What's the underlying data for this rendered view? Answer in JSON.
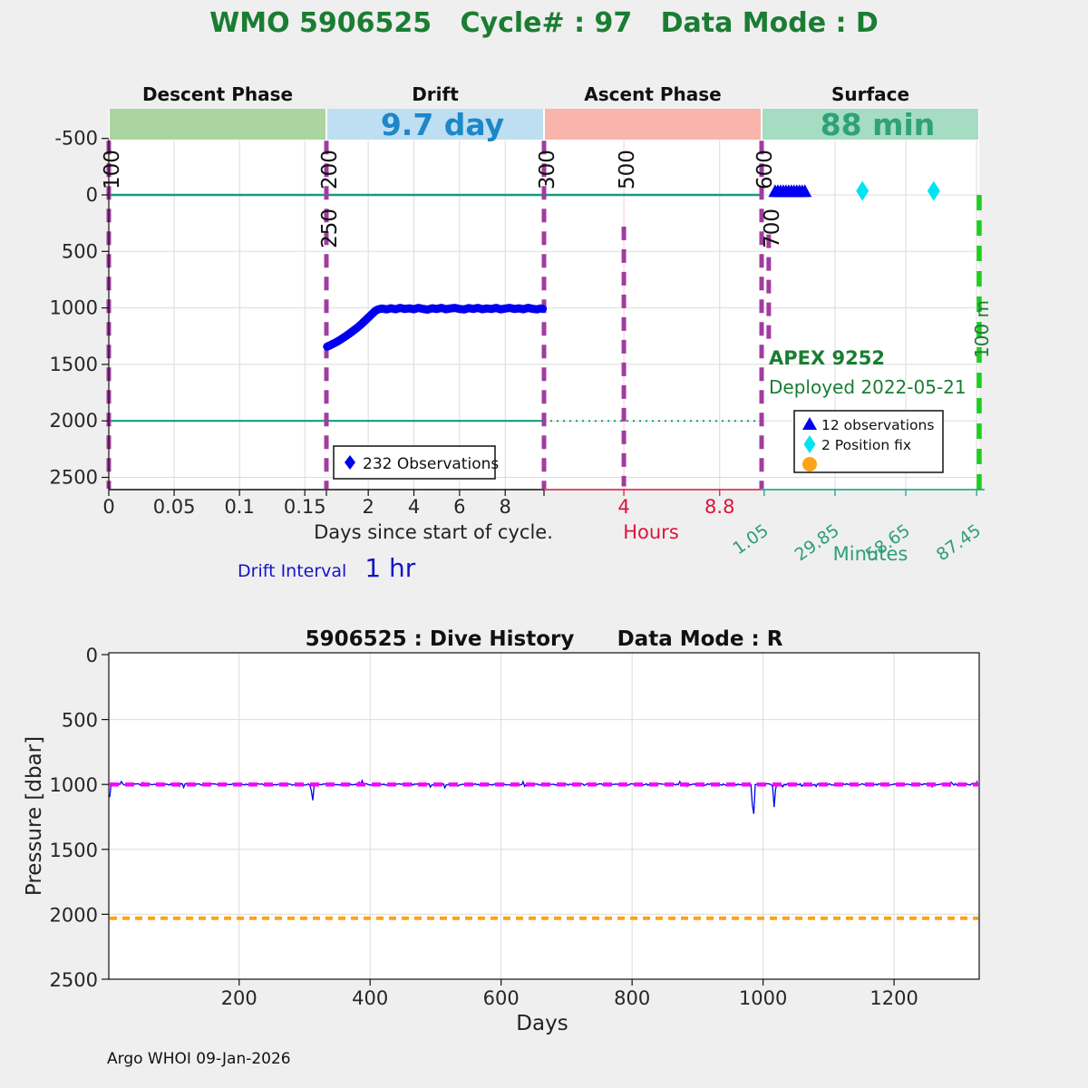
{
  "page": {
    "title": "WMO 5906525   Cycle# : 97   Data Mode : D",
    "drift_interval_label": "Drift Interval",
    "drift_interval_value": "1 hr",
    "footer": "Argo WHOI 09-Jan-2026"
  },
  "colors": {
    "title_green": "#1a7d32",
    "band_descent": "#abd5a0",
    "band_drift": "#bedff1",
    "band_ascent": "#f9b4ab",
    "band_surface": "#a6dcc1",
    "drift_value": "#1d87c9",
    "surface_value": "#2ea27a",
    "purple": "#a13c9f",
    "teal": "#149b80",
    "lime": "#1ecd1e",
    "data_blue": "#0000ef",
    "cyan": "#00e4f2",
    "orange": "#ffa217",
    "magenta": "#fb02fb",
    "crimson": "#dc143c",
    "minutes_green": "#2f9e77",
    "interval_blue": "#1414cc",
    "grid": "#dcdcdc",
    "grid_pink": "#f6ccd4"
  },
  "chart_data": [
    {
      "id": "cycle_timing",
      "type": "scatter",
      "phases": [
        {
          "label": "Descent Phase",
          "band_color": "band_descent",
          "duration": "",
          "duration_color": "drift_value"
        },
        {
          "label": "Drift",
          "band_color": "band_drift",
          "duration": "9.7 day",
          "duration_color": "drift_value"
        },
        {
          "label": "Ascent Phase",
          "band_color": "band_ascent",
          "duration": "",
          "duration_color": "drift_value"
        },
        {
          "label": "Surface",
          "band_color": "band_surface",
          "duration": "88 min",
          "duration_color": "surface_value"
        }
      ],
      "y_axis": {
        "ticks": [
          -500,
          0,
          500,
          1000,
          1500,
          2000,
          2500
        ],
        "range": [
          -790,
          2600
        ],
        "unit": "dbar"
      },
      "x_segments": [
        {
          "name": "descent_days",
          "domain": [
            0,
            0.1665
          ],
          "ticks": [
            0,
            0.05,
            0.1,
            0.15
          ],
          "tick_labels": [
            "0",
            "0.05",
            "0.1",
            "0.15"
          ],
          "label": ""
        },
        {
          "name": "drift_days",
          "domain": [
            0.1665,
            9.7
          ],
          "ticks": [
            2,
            4,
            6,
            8
          ],
          "tick_labels": [
            "2",
            "4",
            "6",
            "8"
          ],
          "label": ""
        },
        {
          "name": "ascent_hours",
          "domain": [
            0,
            10.9
          ],
          "ticks": [
            4,
            8.8
          ],
          "tick_labels": [
            "4",
            "8.8"
          ],
          "label": "Hours"
        },
        {
          "name": "surface_minutes",
          "domain": [
            0,
            88.5
          ],
          "ticks": [
            1.05,
            29.85,
            58.65,
            87.45
          ],
          "tick_labels": [
            "1.05",
            "29.85",
            "58.65",
            "87.45"
          ],
          "label": "Minutes"
        }
      ],
      "x_axis_label": "Days since start of cycle.",
      "drift_series": {
        "name": "232 Observations",
        "points_day_dbar": [
          [
            0.2,
            1343
          ],
          [
            0.3,
            1334
          ],
          [
            0.42,
            1322
          ],
          [
            0.55,
            1308
          ],
          [
            0.7,
            1291
          ],
          [
            0.85,
            1272
          ],
          [
            1.0,
            1252
          ],
          [
            1.15,
            1231
          ],
          [
            1.3,
            1209
          ],
          [
            1.45,
            1186
          ],
          [
            1.6,
            1161
          ],
          [
            1.75,
            1134
          ],
          [
            1.9,
            1106
          ],
          [
            2.05,
            1076
          ],
          [
            2.2,
            1047
          ],
          [
            2.32,
            1025
          ],
          [
            2.45,
            1012
          ],
          [
            2.6,
            1006
          ],
          [
            2.8,
            1013
          ],
          [
            3.0,
            1003
          ],
          [
            3.2,
            1012
          ],
          [
            3.4,
            1000
          ],
          [
            3.6,
            1010
          ],
          [
            3.8,
            1004
          ],
          [
            4.0,
            1012
          ],
          [
            4.2,
            1000
          ],
          [
            4.4,
            1009
          ],
          [
            4.6,
            1015
          ],
          [
            4.8,
            1003
          ],
          [
            5.0,
            1010
          ],
          [
            5.2,
            1000
          ],
          [
            5.4,
            1012
          ],
          [
            5.6,
            1005
          ],
          [
            5.8,
            1000
          ],
          [
            6.0,
            1010
          ],
          [
            6.2,
            1014
          ],
          [
            6.4,
            1002
          ],
          [
            6.6,
            1009
          ],
          [
            6.8,
            1000
          ],
          [
            7.0,
            1012
          ],
          [
            7.2,
            1005
          ],
          [
            7.4,
            1010
          ],
          [
            7.6,
            1000
          ],
          [
            7.8,
            1013
          ],
          [
            8.0,
            1006
          ],
          [
            8.2,
            1000
          ],
          [
            8.4,
            1010
          ],
          [
            8.6,
            1004
          ],
          [
            8.8,
            1012
          ],
          [
            9.0,
            1000
          ],
          [
            9.2,
            1008
          ],
          [
            9.4,
            1013
          ],
          [
            9.55,
            1005
          ],
          [
            9.65,
            1008
          ]
        ]
      },
      "surface_observations": {
        "name": "12 observations",
        "minutes": [
          5.5,
          6.6,
          7.7,
          8.8,
          9.9,
          11.0,
          12.1,
          13.2,
          14.3,
          15.4,
          16.5,
          17.6
        ],
        "pressure": -30
      },
      "position_fixes": {
        "name": "2 Position fix",
        "minutes": [
          41,
          70
        ],
        "pressure": -35
      },
      "marker_lines": [
        {
          "label_key": "100",
          "segment": 0,
          "value": 0,
          "dbar_from": -480,
          "dbar_to": 2600,
          "labels_above": [
            "100"
          ],
          "labels_below": []
        },
        {
          "label_key": "200",
          "segment": 1,
          "value": 0.1665,
          "dbar_from": -480,
          "dbar_to": 2600,
          "labels_above": [
            "200"
          ],
          "labels_below": [
            "250"
          ]
        },
        {
          "label_key": "300",
          "segment": 1,
          "value": 9.7,
          "dbar_from": -480,
          "dbar_to": 2600,
          "labels_above": [
            "300"
          ],
          "labels_below": []
        },
        {
          "label_key": "500",
          "segment": 2,
          "value": 4,
          "dbar_from": 280,
          "dbar_to": 2580,
          "labels_above": [
            "500"
          ],
          "labels_below": []
        },
        {
          "label_key": "600",
          "segment": 3,
          "value": 0,
          "dbar_from": -480,
          "dbar_to": 2600,
          "labels_above": [
            "600"
          ],
          "labels_below": []
        },
        {
          "label_key": "700",
          "segment": 3,
          "value": 2.9,
          "dbar_from": 350,
          "dbar_to": 1320,
          "labels_above": [],
          "labels_below": [
            "700"
          ]
        }
      ],
      "ref_lines": [
        {
          "id": "surface_zero",
          "pressure": 0,
          "style": "solid",
          "color": "teal"
        },
        {
          "id": "park_2000_solid",
          "pressure": 2000,
          "style": "solid",
          "color": "teal"
        },
        {
          "id": "park_2000_dotted",
          "pressure": 2000,
          "style": "dotted",
          "color": "teal"
        },
        {
          "id": "end_of_cycle",
          "minutes": 88.5,
          "style": "dashed",
          "color": "lime",
          "label": "100 m"
        }
      ],
      "annotations": [
        {
          "text": "APEX 9252"
        },
        {
          "text": "Deployed 2022-05-21"
        }
      ],
      "legend_observations": {
        "marker": "diamond",
        "color": "data_blue",
        "label": "232 Observations"
      },
      "legend_surface": {
        "items": [
          {
            "marker": "triangle",
            "color": "data_blue",
            "label": "12 observations"
          },
          {
            "marker": "diamond",
            "color": "cyan",
            "label": "2 Position fix"
          },
          {
            "marker": "circle",
            "color": "orange",
            "label": ""
          }
        ]
      }
    },
    {
      "id": "dive_history",
      "type": "line",
      "title_left": "5906525 : Dive History",
      "title_right": "Data Mode : R",
      "ylabel": "Pressure [dbar]",
      "xlabel": "Days",
      "x_ticks": [
        200,
        400,
        600,
        800,
        1000,
        1200
      ],
      "x_range": [
        1,
        1330
      ],
      "y_ticks": [
        0,
        500,
        1000,
        1500,
        2000,
        2500
      ],
      "y_range": [
        0,
        2500
      ],
      "series": [
        {
          "name": "park_pressure_raw",
          "color": "data_blue",
          "baseline": 1000,
          "noise_dbar": 13,
          "dips": [
            {
              "day": 2,
              "pressure": 1115
            },
            {
              "day": 312,
              "pressure": 1150
            },
            {
              "day": 985,
              "pressure": 1335
            },
            {
              "day": 1017,
              "pressure": 1185
            }
          ]
        },
        {
          "name": "park_pressure_nominal",
          "color": "magenta",
          "style": "dashed",
          "value": 1000
        },
        {
          "name": "profile_pressure_nominal",
          "color": "orange",
          "style": "dashed",
          "value": 2030
        }
      ]
    }
  ]
}
